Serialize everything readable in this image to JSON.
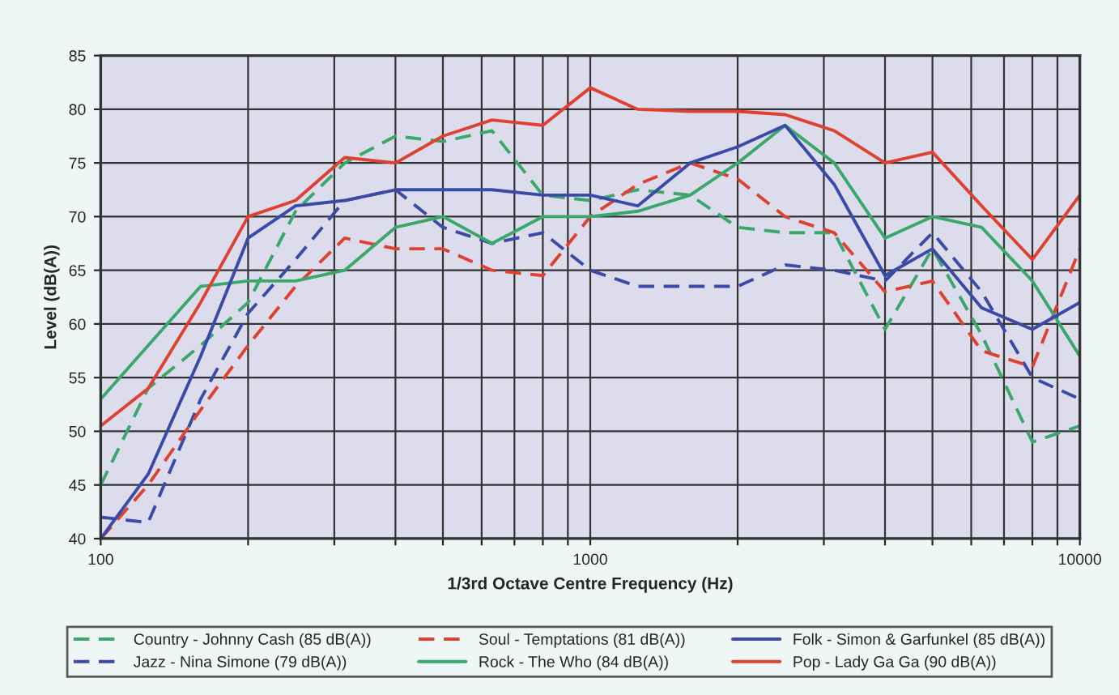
{
  "chart_data": {
    "type": "line",
    "xlabel": "1/3rd Octave Centre Frequency (Hz)",
    "ylabel": "Level (dB(A))",
    "log": "x",
    "x": [
      100,
      125,
      160,
      200,
      250,
      315,
      400,
      500,
      630,
      800,
      1000,
      1250,
      1600,
      2000,
      2500,
      3150,
      4000,
      5000,
      6300,
      8000,
      10000
    ],
    "series": [
      {
        "name": "Country - Johnny Cash (85 dB(A))",
        "color": "#3aa86a",
        "line_style": "dashed",
        "values": [
          45,
          54,
          58,
          62,
          70.5,
          75,
          77.5,
          77,
          78,
          72,
          71.5,
          72.5,
          72,
          69,
          68.5,
          68.5,
          59.5,
          67,
          59,
          49,
          50.5
        ]
      },
      {
        "name": "Jazz - Nina Simone (79 dB(A))",
        "color": "#3a4aa8",
        "line_style": "dashed",
        "values": [
          42,
          41.5,
          53,
          61,
          66,
          71.5,
          72.5,
          69,
          67.5,
          68.5,
          65,
          63.5,
          63.5,
          63.5,
          65.5,
          65,
          64,
          68.5,
          63,
          55,
          53
        ]
      },
      {
        "name": "Soul - Temptations (81 dB(A))",
        "color": "#e04030",
        "line_style": "dashed",
        "values": [
          40,
          45,
          52,
          58,
          63.5,
          68,
          67,
          67,
          65,
          64.5,
          70,
          73,
          75,
          73.5,
          70,
          68.5,
          63,
          64,
          57.5,
          56,
          67
        ]
      },
      {
        "name": "Rock - The Who (84 dB(A))",
        "color": "#3aa86a",
        "line_style": "solid",
        "values": [
          53,
          58,
          63.5,
          64,
          64,
          65,
          69,
          70,
          67.5,
          70,
          70,
          70.5,
          72,
          75,
          78.5,
          75,
          68,
          70,
          69,
          64,
          57
        ]
      },
      {
        "name": "Folk - Simon & Garfunkel (85 dB(A))",
        "color": "#3a4aa8",
        "line_style": "solid",
        "values": [
          40,
          46,
          57,
          68,
          71,
          71.5,
          72.5,
          72.5,
          72.5,
          72,
          72,
          71,
          75,
          76.5,
          78.5,
          73,
          64.5,
          67,
          61.5,
          59.5,
          62
        ]
      },
      {
        "name": "Pop - Lady Ga Ga (90 dB(A))",
        "color": "#e04030",
        "line_style": "solid",
        "values": [
          50.5,
          54,
          62,
          70,
          71.5,
          75.5,
          75,
          77.5,
          79,
          78.5,
          82,
          80,
          79.8,
          79.8,
          79.5,
          78,
          75,
          76,
          71,
          66,
          72
        ]
      }
    ],
    "xlim": [
      100,
      10000
    ],
    "ylim": [
      40,
      85
    ],
    "xticks": [
      100,
      {
        "value": 200,
        "label": null
      },
      {
        "value": 300,
        "label": null
      },
      {
        "value": 400,
        "label": null
      },
      {
        "value": 500,
        "label": null
      },
      {
        "value": 600,
        "label": null
      },
      {
        "value": 700,
        "label": null
      },
      {
        "value": 800,
        "label": null
      },
      {
        "value": 900,
        "label": null
      },
      1000,
      {
        "value": 2000,
        "label": null
      },
      {
        "value": 3000,
        "label": null
      },
      {
        "value": 4000,
        "label": null
      },
      {
        "value": 5000,
        "label": null
      },
      {
        "value": 6000,
        "label": null
      },
      {
        "value": 7000,
        "label": null
      },
      {
        "value": 8000,
        "label": null
      },
      {
        "value": 9000,
        "label": null
      },
      10000
    ],
    "yticks": [
      40,
      45,
      50,
      55,
      60,
      65,
      70,
      75,
      80,
      85
    ],
    "grid": true,
    "legend": "bottom"
  }
}
